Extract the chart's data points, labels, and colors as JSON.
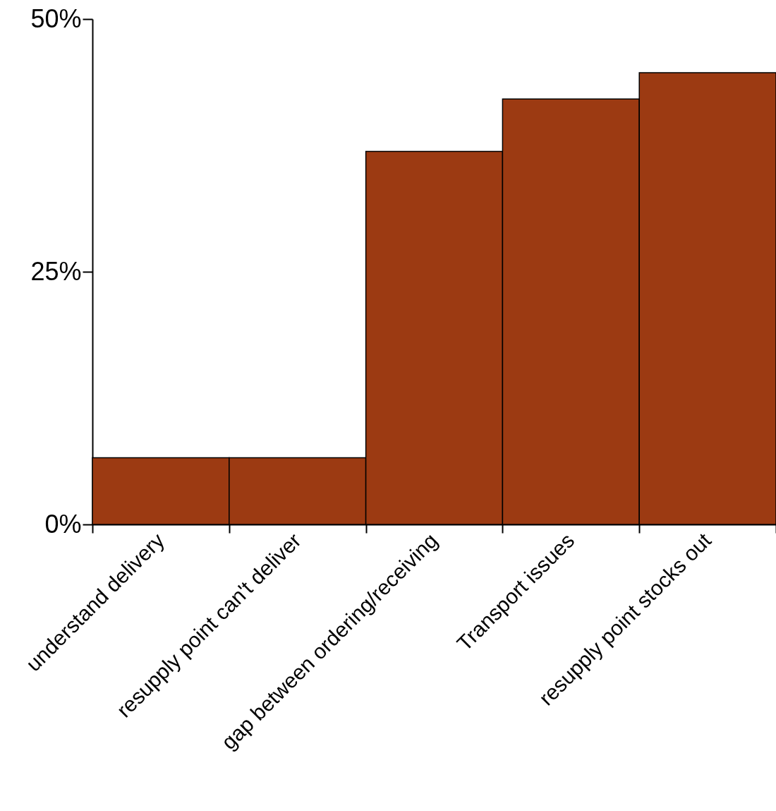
{
  "chart_data": {
    "type": "bar",
    "categories": [
      "understand delivery",
      "resupply point can't deliver",
      "gap between ordering/receiving",
      "Transport issues",
      "resupply point stocks out"
    ],
    "values": [
      6.6,
      6.6,
      36.9,
      42.1,
      44.7
    ],
    "color": "#9c3a12",
    "ylim": [
      0,
      50
    ],
    "yticks": [
      {
        "value": 0,
        "label": "0%"
      },
      {
        "value": 25,
        "label": "25%"
      },
      {
        "value": 50,
        "label": "50%"
      }
    ],
    "grid": false
  }
}
